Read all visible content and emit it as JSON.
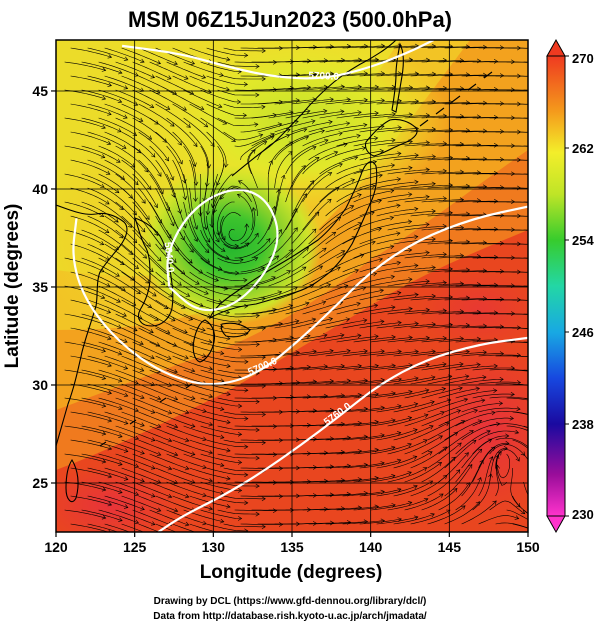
{
  "title": "MSM 06Z15Jun2023 (500.0hPa)",
  "x_axis": {
    "label": "Longitude (degrees)",
    "range": [
      120,
      150
    ],
    "ticks": [
      120,
      125,
      130,
      135,
      140,
      145,
      150
    ],
    "tick_labels": [
      "120",
      "125",
      "130",
      "135",
      "140",
      "145",
      "150"
    ]
  },
  "y_axis": {
    "label": "Latitude  (degrees)",
    "range": [
      22.5,
      47.6
    ],
    "ticks": [
      25,
      30,
      35,
      40,
      45
    ],
    "tick_labels": [
      "25",
      "30",
      "35",
      "40",
      "45"
    ]
  },
  "colorbar": {
    "min": 230,
    "max": 270,
    "tick_values": [
      230,
      238,
      246,
      254,
      262,
      270
    ],
    "tick_labels": [
      "230",
      "238",
      "246",
      "254",
      "262",
      "270"
    ],
    "orientation": "vertical",
    "placement": "right"
  },
  "contours": [
    {
      "label": "5700.0",
      "points": [
        [
          124.2,
          47.3
        ],
        [
          128,
          46.9
        ],
        [
          131,
          46.2
        ],
        [
          134,
          45.7
        ],
        [
          137,
          45.6
        ],
        [
          140,
          46.2
        ],
        [
          142.5,
          47.0
        ],
        [
          144,
          47.6
        ]
      ]
    },
    {
      "label": "5640.0",
      "points": [
        [
          127.2,
          35.0
        ],
        [
          127.0,
          36.5
        ],
        [
          128.0,
          38.3
        ],
        [
          129.7,
          39.6
        ],
        [
          131.8,
          40.1
        ],
        [
          133.5,
          39.4
        ],
        [
          134.3,
          37.6
        ],
        [
          133.3,
          35.6
        ],
        [
          131.3,
          34.0
        ],
        [
          129.0,
          33.7
        ],
        [
          127.2,
          35.0
        ]
      ]
    },
    {
      "label": "5700.0",
      "points": [
        [
          121.3,
          38.5
        ],
        [
          121.0,
          36.5
        ],
        [
          121.8,
          34.4
        ],
        [
          123.7,
          32.4
        ],
        [
          126.3,
          30.8
        ],
        [
          129.0,
          30.0
        ],
        [
          131.2,
          30.1
        ],
        [
          133.2,
          30.8
        ],
        [
          135.2,
          32.1
        ],
        [
          137.5,
          33.8
        ],
        [
          140.0,
          35.8
        ],
        [
          143.0,
          37.4
        ],
        [
          146.5,
          38.5
        ],
        [
          150,
          39.1
        ]
      ]
    },
    {
      "label": "5760.0",
      "points": [
        [
          126.5,
          22.5
        ],
        [
          128.0,
          23.3
        ],
        [
          130.5,
          24.3
        ],
        [
          133.0,
          25.5
        ],
        [
          135.5,
          26.9
        ],
        [
          138.0,
          28.4
        ],
        [
          140.5,
          30.0
        ],
        [
          143.5,
          31.3
        ],
        [
          147.0,
          32.1
        ],
        [
          150,
          32.4
        ]
      ]
    }
  ],
  "credits": {
    "line1": "Drawing by DCL (https://www.gfd-dennou.org/library/dcl/)",
    "line2": "Data from http://database.rish.kyoto-u.ac.jp/arch/jmadata/"
  },
  "colors": {
    "background": "#ffffff",
    "frame": "#000000",
    "contour": "#ffffff",
    "streamline": "#000000",
    "coast": "#000000"
  }
}
